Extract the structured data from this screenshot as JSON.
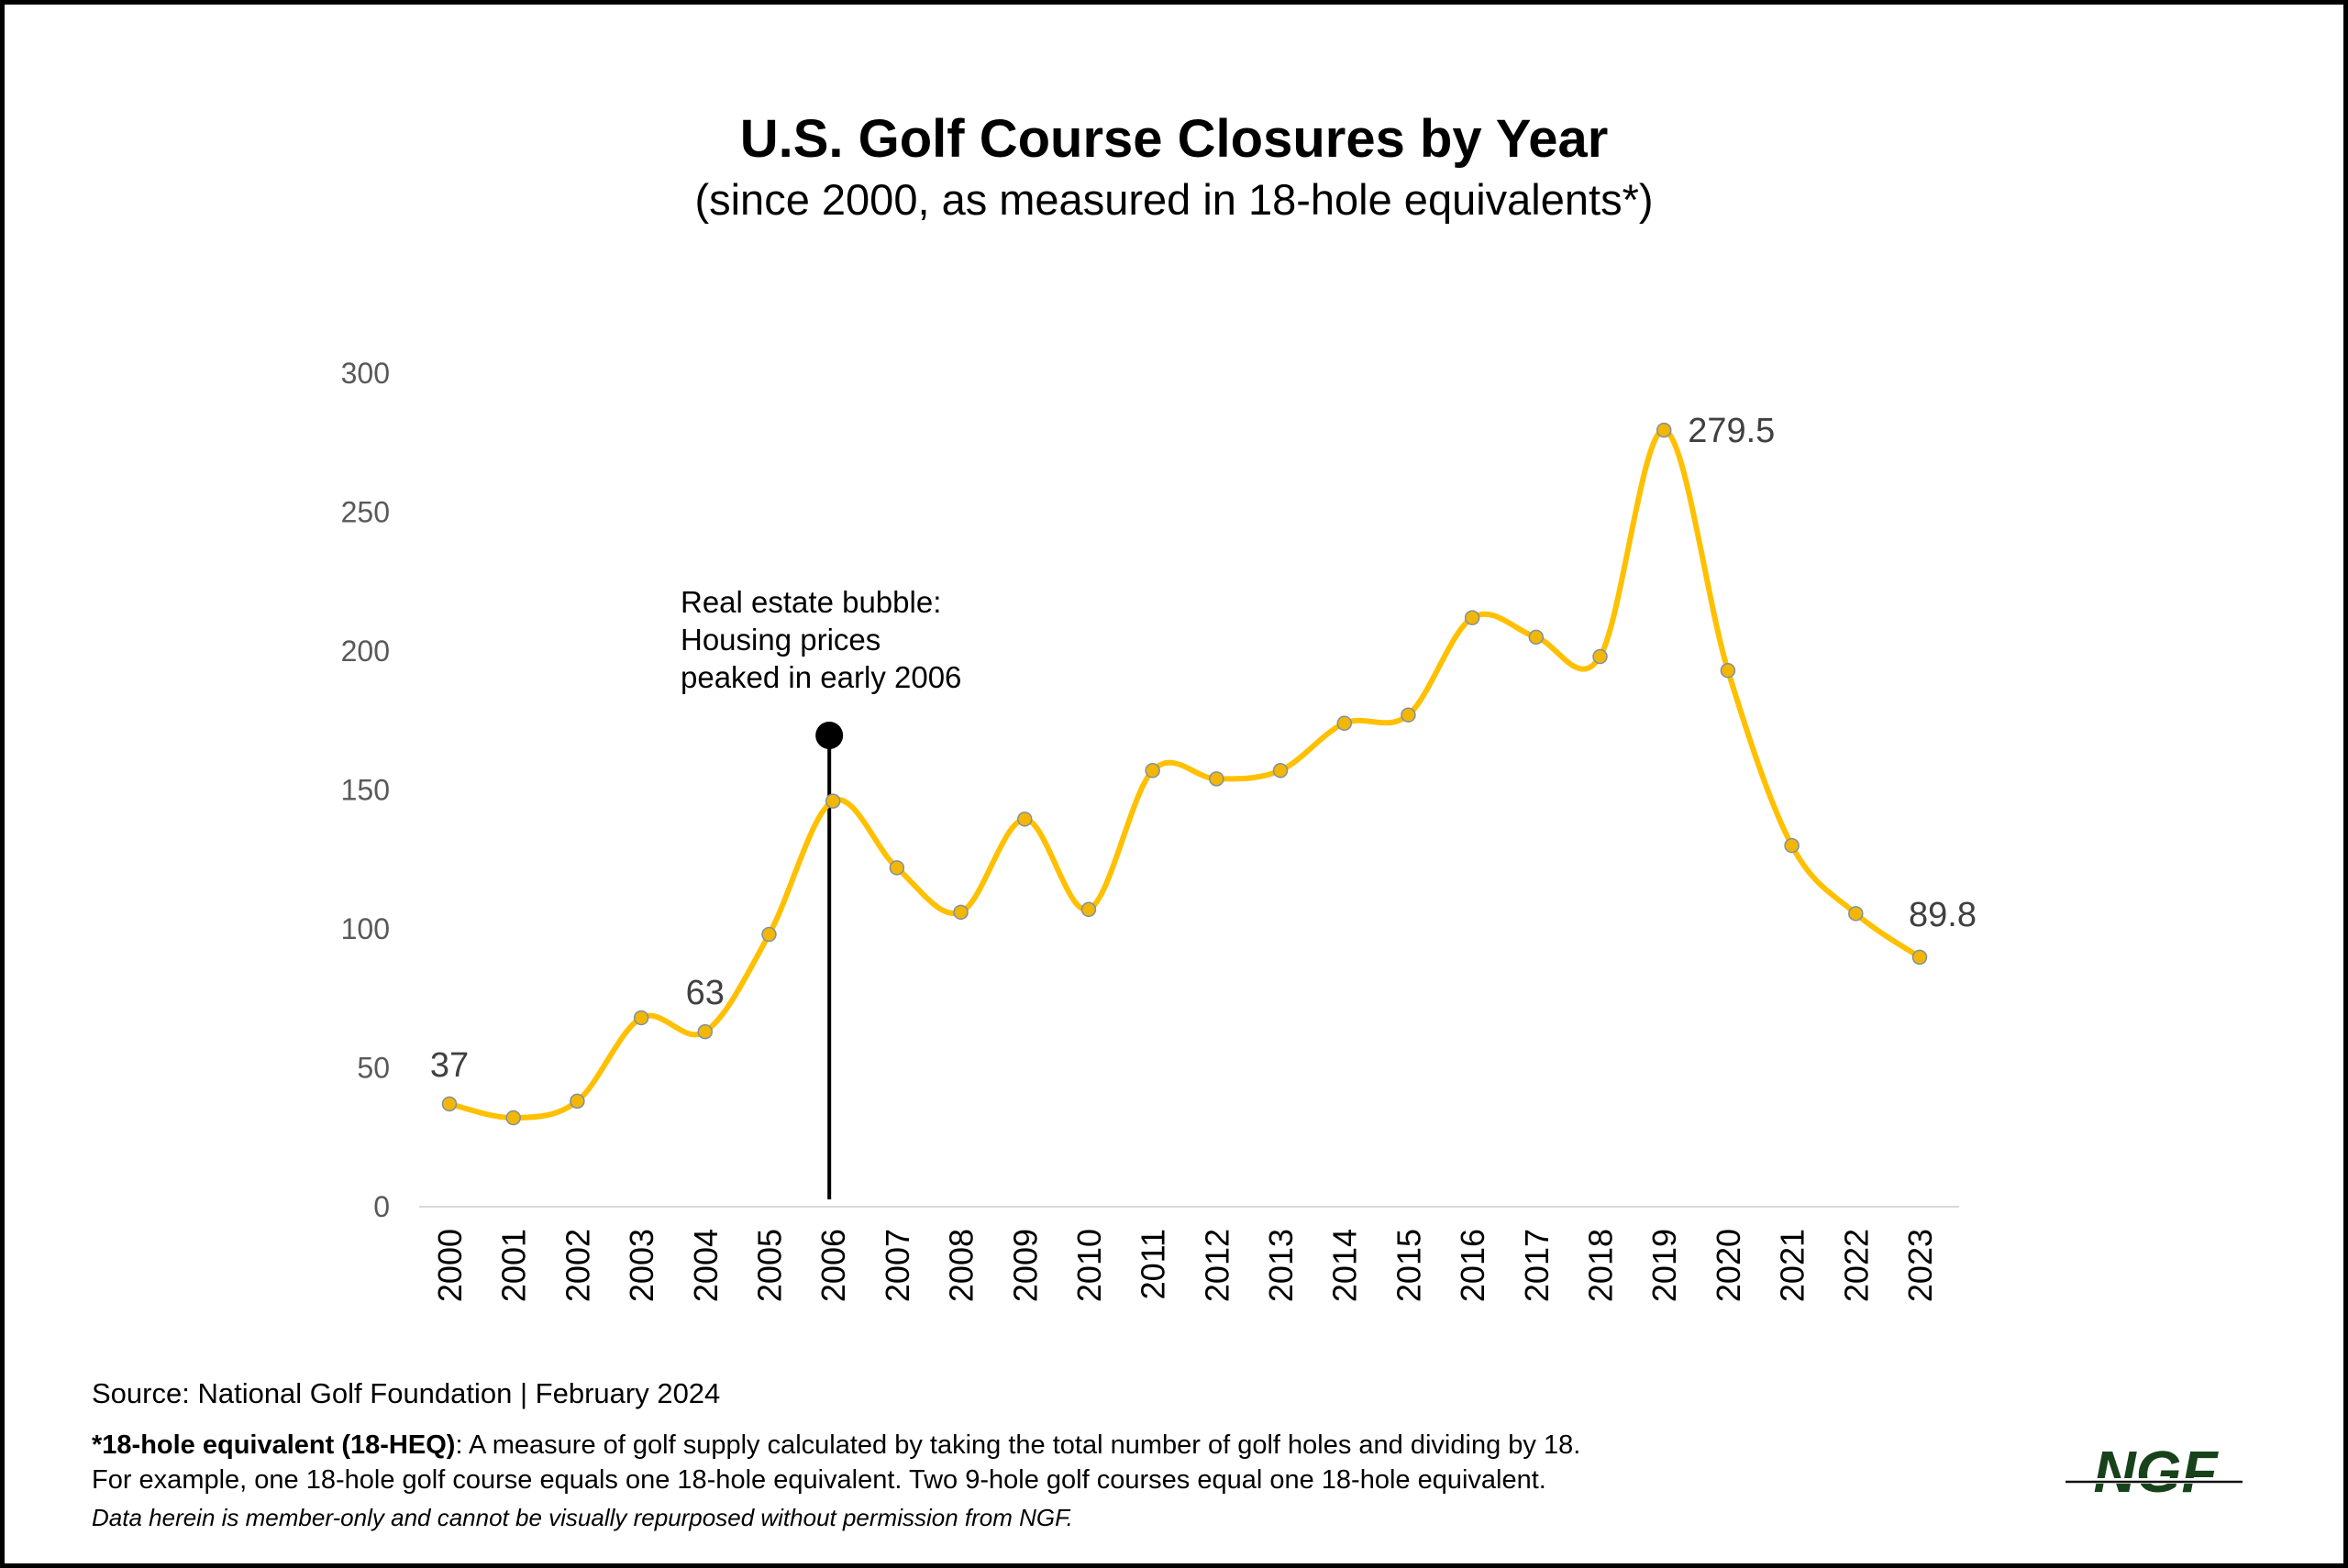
{
  "chart_data": {
    "type": "line",
    "title": "U.S. Golf Course Closures by Year",
    "subtitle": "(since 2000, as measured in 18-hole equivalents*)",
    "categories": [
      "2000",
      "2001",
      "2002",
      "2003",
      "2004",
      "2005",
      "2006",
      "2007",
      "2008",
      "2009",
      "2010",
      "2011",
      "2012",
      "2013",
      "2014",
      "2015",
      "2016",
      "2017",
      "2018",
      "2019",
      "2020",
      "2021",
      "2022",
      "2023"
    ],
    "values": [
      37,
      32,
      38,
      68,
      63,
      98,
      146,
      122,
      106,
      139.5,
      107,
      157,
      154,
      157,
      174,
      177,
      212,
      205,
      198,
      279.5,
      193,
      130,
      105.5,
      89.8
    ],
    "ylim": [
      0,
      300
    ],
    "yticks": [
      0,
      50,
      100,
      150,
      200,
      250,
      300
    ],
    "grid": false,
    "data_labels": [
      {
        "category": "2000",
        "text": "37"
      },
      {
        "category": "2004",
        "text": "63"
      },
      {
        "category": "2019",
        "text": "279.5"
      },
      {
        "category": "2023",
        "text": "89.8"
      }
    ],
    "annotation": {
      "category": "2006",
      "lines": [
        "Real estate bubble:",
        "Housing prices",
        "peaked in early 2006"
      ]
    },
    "line_color": "#FFC000",
    "marker_color": "#F2B705"
  },
  "footer": {
    "source": "Source: National Golf Foundation | February 2024",
    "footnote_term": "*18-hole equivalent (18-HEQ)",
    "footnote_text": ": A measure of golf supply calculated by taking the total number of golf holes and dividing by 18.",
    "footnote_line2": "For example, one 18-hole golf course equals one 18-hole equivalent. Two 9-hole golf courses equal one 18-hole equivalent.",
    "disclaimer": "Data herein is member-only and cannot be visually repurposed without permission from NGF."
  },
  "logo": {
    "text": "NGF",
    "color": "#17421A"
  }
}
